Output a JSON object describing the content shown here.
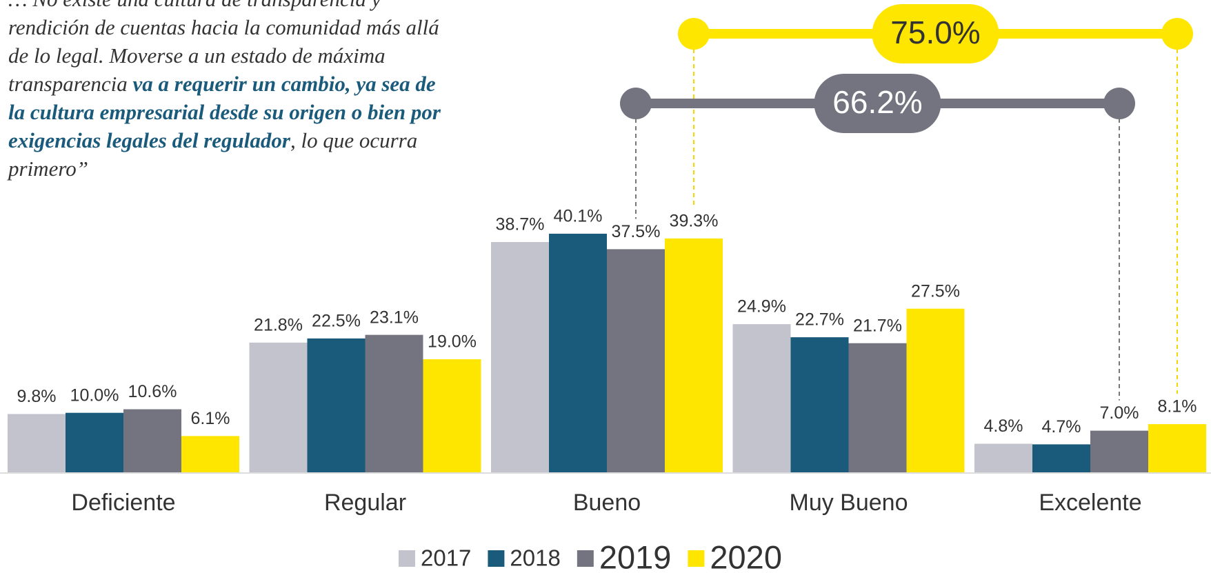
{
  "chart_data": {
    "type": "bar",
    "categories": [
      "Deficiente",
      "Regular",
      "Bueno",
      "Muy Bueno",
      "Excelente"
    ],
    "series": [
      {
        "name": "2017",
        "color": "#c3c3cd",
        "values": [
          9.8,
          21.8,
          38.7,
          24.9,
          4.8
        ],
        "value_labels": [
          "9.8%",
          "21.8%",
          "38.7%",
          "24.9%",
          "4.8%"
        ]
      },
      {
        "name": "2018",
        "color": "#1a5a7b",
        "values": [
          10.0,
          22.5,
          40.1,
          22.7,
          4.7
        ],
        "value_labels": [
          "10.0%",
          "22.5%",
          "40.1%",
          "22.7%",
          "4.7%"
        ]
      },
      {
        "name": "2019",
        "color": "#747480",
        "values": [
          10.6,
          23.1,
          37.5,
          21.7,
          7.0
        ],
        "value_labels": [
          "10.6%",
          "23.1%",
          "37.5%",
          "21.7%",
          "7.0%"
        ]
      },
      {
        "name": "2020",
        "color": "#ffe600",
        "values": [
          6.1,
          19.0,
          39.3,
          27.5,
          8.1
        ],
        "value_labels": [
          "6.1%",
          "19.0%",
          "39.3%",
          "27.5%",
          "8.1%"
        ]
      }
    ],
    "annotations": [
      {
        "text": "75.0%",
        "series": 3,
        "from": "Bueno",
        "to": "Excelente"
      },
      {
        "text": "66.2%",
        "series": 2,
        "from": "Bueno",
        "to": "Excelente"
      }
    ],
    "quote": [
      {
        "text": "… No existe una cultura de transparencia y rendición de cuentas hacia la comunidad más allá de lo legal. Moverse a un estado de máxima transparencia ",
        "bold": false
      },
      {
        "text": "va a requerir un cambio, ya sea de la cultura empresarial desde su origen o bien por exigencias legales del regulador",
        "bold": true
      },
      {
        "text": ", lo que ocurra primero”",
        "bold": false
      }
    ]
  }
}
